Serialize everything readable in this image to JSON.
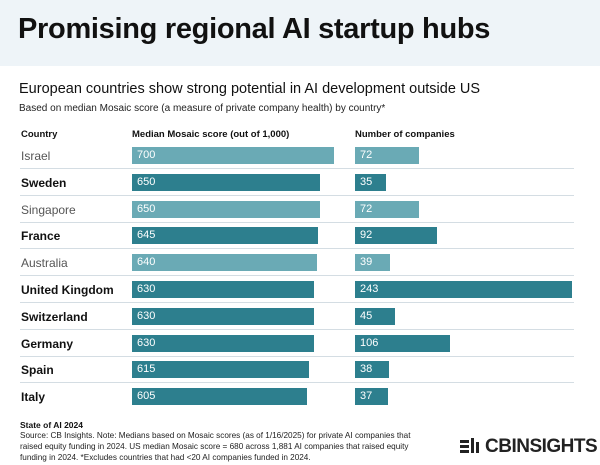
{
  "title": "Promising regional AI startup hubs",
  "subtitle": "European countries show strong potential in AI development outside US",
  "note": "Based on median Mosaic score (a measure of private company health) by country*",
  "columns": {
    "country": "Country",
    "score": "Median Mosaic score (out of 1,000)",
    "companies": "Number of companies"
  },
  "colors": {
    "bar_dark": "#2d7f8e",
    "bar_light": "#6aaab5"
  },
  "chart_data": {
    "type": "bar",
    "title": "Promising regional AI startup hubs",
    "orientation": "horizontal",
    "categories": [
      "Israel",
      "Sweden",
      "Singapore",
      "France",
      "Australia",
      "United Kingdom",
      "Switzerland",
      "Germany",
      "Spain",
      "Italy"
    ],
    "european": [
      false,
      true,
      false,
      true,
      false,
      true,
      true,
      true,
      true,
      true
    ],
    "series": [
      {
        "name": "Median Mosaic score (out of 1,000)",
        "values": [
          700,
          650,
          650,
          645,
          640,
          630,
          630,
          630,
          615,
          605
        ],
        "xlim": [
          0,
          700
        ]
      },
      {
        "name": "Number of companies",
        "values": [
          72,
          35,
          72,
          92,
          39,
          243,
          45,
          106,
          38,
          37
        ],
        "xlim": [
          0,
          243
        ]
      }
    ],
    "legend": "none",
    "grid": false
  },
  "footer": {
    "title": "State of AI 2024",
    "lines": [
      "Source: CB Insights. Note: Medians based on Mosaic scores (as of 1/16/2025) for private AI companies that",
      "raised equity funding in 2024. US median Mosaic score = 680 across 1,881 AI companies that raised equity",
      "funding in 2024. *Excludes countries that had <20 AI companies funded in 2024."
    ]
  },
  "logo": {
    "text": "CBINSIGHTS",
    "icon": "cb-logo-icon"
  }
}
